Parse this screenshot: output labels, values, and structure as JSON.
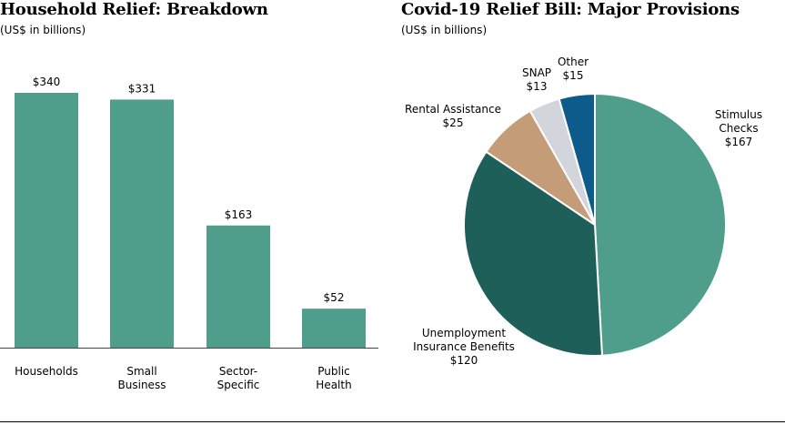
{
  "chart_data": [
    {
      "type": "bar",
      "title": "Household Relief: Breakdown",
      "subtitle": "(US$ in billions)",
      "categories": [
        [
          "Households"
        ],
        [
          "Small",
          "Business"
        ],
        [
          "Sector-",
          "Specific"
        ],
        [
          "Public",
          "Health"
        ]
      ],
      "values": [
        340,
        331,
        163,
        52
      ],
      "value_labels": [
        "$340",
        "$331",
        "$163",
        "$52"
      ],
      "ylim": [
        0,
        340
      ],
      "xlabel": "",
      "ylabel": "",
      "color": "#4e9e8b"
    },
    {
      "type": "pie",
      "title": "Covid-19 Relief Bill: Major Provisions",
      "subtitle": "(US$ in billions)",
      "slices": [
        {
          "name": "Stimulus Checks",
          "label_lines": [
            "Stimulus",
            "Checks",
            "$167"
          ],
          "value": 167,
          "color": "#4e9e8b"
        },
        {
          "name": "Unemployment Insurance Benefits",
          "label_lines": [
            "Unemployment",
            "Insurance Benefits",
            "$120"
          ],
          "value": 120,
          "color": "#1f5f5a"
        },
        {
          "name": "Rental Assistance",
          "label_lines": [
            "Rental Assistance",
            "$25"
          ],
          "value": 25,
          "color": "#c49d78"
        },
        {
          "name": "SNAP",
          "label_lines": [
            "SNAP",
            "$13"
          ],
          "value": 13,
          "color": "#d2d5db"
        },
        {
          "name": "Other",
          "label_lines": [
            "Other",
            "$15"
          ],
          "value": 15,
          "color": "#0d5b8a"
        }
      ]
    }
  ]
}
